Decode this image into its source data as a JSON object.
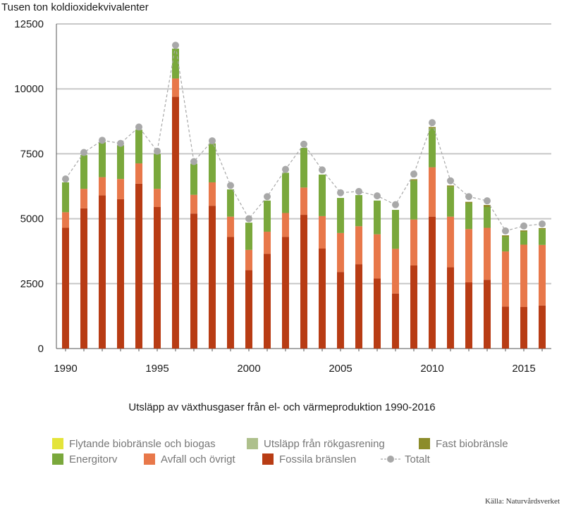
{
  "chart_data": {
    "type": "bar",
    "ylabel": "Tusen ton koldioxidekvivalenter",
    "title": "Utsläpp av växthusgaser från el- och värmeproduktion 1990-2016",
    "ylim": [
      0,
      12500
    ],
    "yticks": [
      0,
      2500,
      5000,
      7500,
      10000,
      12500
    ],
    "xticks": [
      1990,
      1995,
      2000,
      2005,
      2010,
      2015
    ],
    "x": [
      1990,
      1991,
      1992,
      1993,
      1994,
      1995,
      1996,
      1997,
      1998,
      1999,
      2000,
      2001,
      2002,
      2003,
      2004,
      2005,
      2006,
      2007,
      2008,
      2009,
      2010,
      2011,
      2012,
      2013,
      2014,
      2015,
      2016
    ],
    "stacked": true,
    "grid": true,
    "series": [
      {
        "name": "Fossila bränslen",
        "color": "#b83c14",
        "values": [
          4650,
          5400,
          5900,
          5750,
          6350,
          5450,
          9700,
          5200,
          5500,
          4300,
          3020,
          3650,
          4300,
          5150,
          3850,
          2950,
          3250,
          2700,
          2120,
          3200,
          5080,
          3130,
          2550,
          2650,
          1620,
          1600,
          1660
        ]
      },
      {
        "name": "Avfall och övrigt",
        "color": "#e8784a",
        "values": [
          600,
          750,
          700,
          780,
          780,
          700,
          700,
          720,
          900,
          780,
          780,
          850,
          920,
          1050,
          1250,
          1500,
          1460,
          1700,
          1720,
          1770,
          1900,
          1950,
          2050,
          2000,
          2120,
          2400,
          2330
        ]
      },
      {
        "name": "Energitorv",
        "color": "#7aa83c",
        "values": [
          1150,
          1300,
          1350,
          1300,
          1300,
          1350,
          1150,
          1200,
          1500,
          1050,
          1050,
          1200,
          1550,
          1530,
          1600,
          1350,
          1200,
          1300,
          1500,
          1500,
          1500,
          1150,
          1000,
          800,
          570,
          500,
          600
        ]
      },
      {
        "name": "Fast biobränsle",
        "color": "#8c8c2a",
        "values": [
          0,
          0,
          0,
          0,
          0,
          0,
          0,
          0,
          0,
          0,
          0,
          0,
          0,
          0,
          0,
          0,
          0,
          0,
          0,
          50,
          50,
          50,
          50,
          80,
          50,
          50,
          50
        ]
      },
      {
        "name": "Utsläpp från rökgasrening",
        "color": "#aec08c",
        "values": [
          0,
          0,
          0,
          0,
          0,
          0,
          0,
          0,
          0,
          0,
          0,
          0,
          0,
          0,
          0,
          0,
          0,
          0,
          0,
          0,
          0,
          0,
          0,
          0,
          0,
          0,
          0
        ]
      },
      {
        "name": "Flytande biobränsle och biogas",
        "color": "#e4e43a",
        "values": [
          0,
          0,
          0,
          0,
          0,
          0,
          0,
          0,
          0,
          0,
          0,
          0,
          0,
          0,
          0,
          0,
          0,
          0,
          0,
          0,
          0,
          0,
          0,
          0,
          0,
          0,
          0
        ]
      }
    ],
    "total": {
      "name": "Totalt",
      "color": "#a8a8a8",
      "values": [
        6530,
        7550,
        8020,
        7900,
        8530,
        7600,
        11680,
        7200,
        8000,
        6280,
        5000,
        5850,
        6900,
        7870,
        6880,
        6000,
        6050,
        5880,
        5540,
        6720,
        8700,
        6460,
        5850,
        5690,
        4530,
        4720,
        4800
      ]
    },
    "legend": [
      "Flytande biobränsle och biogas",
      "Utsläpp från rökgasrening",
      "Fast biobränsle",
      "Energitorv",
      "Avfall och övrigt",
      "Fossila bränslen",
      "Totalt"
    ],
    "source": "Källa: Naturvårdsverket"
  }
}
